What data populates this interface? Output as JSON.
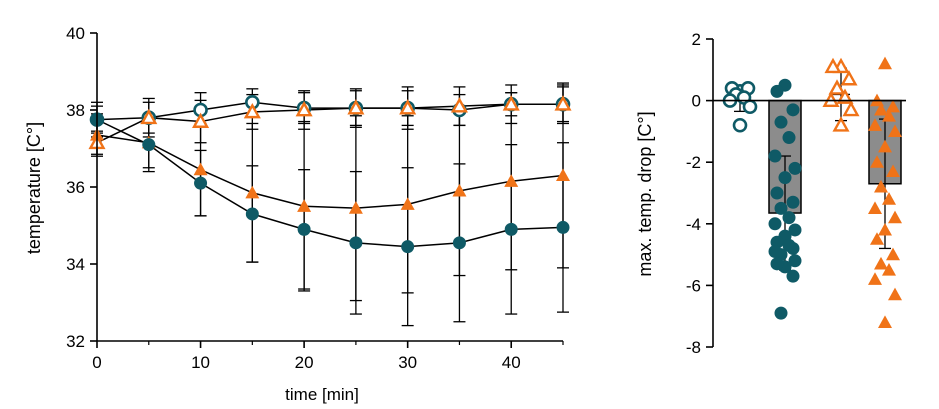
{
  "colors": {
    "teal": "#0f5a66",
    "orange": "#f07318",
    "bar": "#8c8c8c",
    "axis": "#000000"
  },
  "chart_data": [
    {
      "type": "line",
      "xlabel": "time [min]",
      "ylabel": "temperature [C°]",
      "xlim": [
        0,
        45
      ],
      "ylim": [
        32,
        40
      ],
      "x_ticks": [
        0,
        10,
        20,
        30,
        40
      ],
      "y_ticks": [
        32,
        34,
        36,
        38,
        40
      ],
      "x": [
        0,
        5,
        10,
        15,
        20,
        25,
        30,
        35,
        40,
        45
      ],
      "series": [
        {
          "marker": "circle-open",
          "color": "teal",
          "values": [
            37.75,
            37.8,
            38.0,
            38.2,
            38.05,
            38.05,
            38.05,
            38.0,
            38.15,
            38.15
          ],
          "err": [
            0.35,
            0.5,
            0.45,
            0.35,
            0.4,
            0.45,
            0.45,
            0.4,
            0.3,
            0.5
          ]
        },
        {
          "marker": "triangle-open",
          "color": "orange",
          "values": [
            37.15,
            37.8,
            37.7,
            37.95,
            38.0,
            38.05,
            38.05,
            38.1,
            38.15,
            38.15
          ],
          "err": [
            0.3,
            0.4,
            0.55,
            0.45,
            0.5,
            0.5,
            0.55,
            0.5,
            0.5,
            0.45
          ]
        },
        {
          "marker": "triangle-filled",
          "color": "orange",
          "values": [
            37.35,
            37.15,
            36.45,
            35.85,
            35.5,
            35.45,
            35.55,
            35.9,
            36.15,
            36.3
          ],
          "err": [
            0.55,
            0.65,
            1.2,
            1.8,
            2.2,
            2.4,
            2.3,
            2.2,
            2.3,
            2.4
          ]
        },
        {
          "marker": "circle-filled",
          "color": "teal",
          "values": [
            37.75,
            37.1,
            36.1,
            35.3,
            34.9,
            34.55,
            34.45,
            34.55,
            34.9,
            34.95
          ],
          "err": [
            0.45,
            0.7,
            0.85,
            1.25,
            1.55,
            1.85,
            2.05,
            2.05,
            2.2,
            2.2
          ]
        }
      ]
    },
    {
      "type": "bar",
      "ylabel": "max. temp. drop [C°]",
      "ylim": [
        -8,
        2
      ],
      "y_ticks": [
        -8,
        -6,
        -4,
        -2,
        0,
        2
      ],
      "groups": [
        {
          "marker": "circle-open",
          "color": "teal",
          "mean": 0.0,
          "err": 0.35,
          "bar": false,
          "points": [
            0.3,
            0.4,
            0.4,
            0.2,
            0.1,
            0.0,
            -0.2,
            -0.8
          ]
        },
        {
          "marker": "circle-filled",
          "color": "teal",
          "mean": -3.65,
          "err": 1.85,
          "bar": true,
          "points": [
            0.5,
            0.3,
            -0.3,
            -0.7,
            -1.2,
            -1.8,
            -2.2,
            -2.5,
            -3.0,
            -3.3,
            -3.5,
            -3.8,
            -4.0,
            -4.2,
            -4.4,
            -4.6,
            -4.8,
            -5.0,
            -4.7,
            -4.9,
            -5.2,
            -5.4,
            -5.3,
            -5.7,
            -6.9
          ]
        },
        {
          "marker": "triangle-open",
          "color": "orange",
          "mean": 0.2,
          "err": 0.85,
          "bar": false,
          "points": [
            1.1,
            1.1,
            0.7,
            0.4,
            0.1,
            0.0,
            -0.3,
            -0.8
          ]
        },
        {
          "marker": "triangle-filled",
          "color": "orange",
          "mean": -2.7,
          "err": 2.1,
          "bar": true,
          "points": [
            1.2,
            0.0,
            -0.2,
            -0.3,
            -0.5,
            -0.8,
            -1.0,
            -1.5,
            -2.0,
            -2.3,
            -2.8,
            -3.2,
            -3.5,
            -3.8,
            -4.2,
            -4.5,
            -5.0,
            -5.3,
            -5.5,
            -5.8,
            -6.3,
            -7.2
          ]
        }
      ]
    }
  ]
}
